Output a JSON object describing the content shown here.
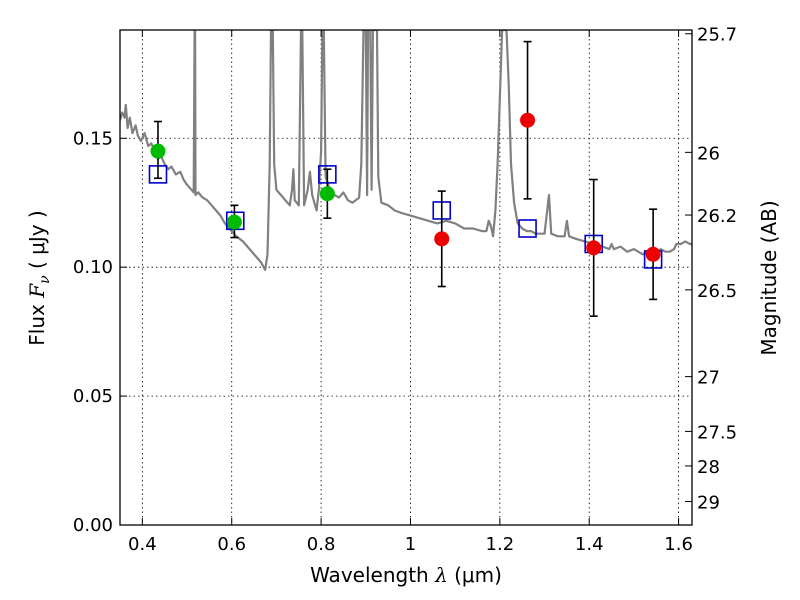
{
  "chart_data": {
    "type": "scatter",
    "title": "",
    "xlabel": "Wavelength  λ (μm)",
    "xlabel_parts": {
      "pre": "Wavelength  ",
      "symbol": "λ",
      "post": " (μm)"
    },
    "ylabel": "Flux  Fν  ( μJy )",
    "ylabel_parts": {
      "pre": "Flux  ",
      "symbol": "F",
      "sub": "ν",
      "post": "  ( μJy )"
    },
    "y2label": "Magnitude (AB)",
    "xlim": [
      0.35,
      1.63
    ],
    "ylim": [
      0.0,
      0.192
    ],
    "grid": true,
    "grid_style": "dotted",
    "legend": "none",
    "x_ticks": [
      {
        "value": 0.4,
        "label": "0.4"
      },
      {
        "value": 0.6,
        "label": "0.6"
      },
      {
        "value": 0.8,
        "label": "0.8"
      },
      {
        "value": 1.0,
        "label": "1"
      },
      {
        "value": 1.2,
        "label": "1.2"
      },
      {
        "value": 1.4,
        "label": "1.4"
      },
      {
        "value": 1.6,
        "label": "1.6"
      }
    ],
    "y_ticks": [
      {
        "value": 0.0,
        "label": "0.00"
      },
      {
        "value": 0.05,
        "label": "0.05"
      },
      {
        "value": 0.1,
        "label": "0.10"
      },
      {
        "value": 0.15,
        "label": "0.15"
      }
    ],
    "mag_ticks": [
      {
        "value": 25.7,
        "label": "25.7"
      },
      {
        "value": 26,
        "label": "26"
      },
      {
        "value": 26.2,
        "label": "26.2"
      },
      {
        "value": 26.5,
        "label": "26.5"
      },
      {
        "value": 27,
        "label": "27"
      },
      {
        "value": 27.5,
        "label": "27.5"
      },
      {
        "value": 28,
        "label": "28"
      },
      {
        "value": 29,
        "label": "29"
      }
    ],
    "colors": {
      "model": "#808080",
      "green": "#00bb00",
      "red": "#ee0000",
      "model_flux_marker": "#0000cc",
      "errorbar": "#000000",
      "grid": "#000000"
    },
    "model_spectrum": [
      [
        0.35,
        0.157
      ],
      [
        0.355,
        0.16
      ],
      [
        0.36,
        0.158
      ],
      [
        0.363,
        0.163
      ],
      [
        0.367,
        0.154
      ],
      [
        0.372,
        0.158
      ],
      [
        0.378,
        0.152
      ],
      [
        0.385,
        0.155
      ],
      [
        0.39,
        0.151
      ],
      [
        0.397,
        0.149
      ],
      [
        0.405,
        0.152
      ],
      [
        0.413,
        0.147
      ],
      [
        0.42,
        0.148
      ],
      [
        0.428,
        0.145
      ],
      [
        0.435,
        0.142
      ],
      [
        0.442,
        0.143
      ],
      [
        0.45,
        0.14
      ],
      [
        0.458,
        0.138
      ],
      [
        0.465,
        0.139
      ],
      [
        0.475,
        0.136
      ],
      [
        0.485,
        0.137
      ],
      [
        0.492,
        0.134
      ],
      [
        0.5,
        0.132
      ],
      [
        0.51,
        0.13
      ],
      [
        0.515,
        0.129
      ],
      [
        0.517,
        0.192
      ],
      [
        0.518,
        0.192
      ],
      [
        0.519,
        0.128
      ],
      [
        0.525,
        0.129
      ],
      [
        0.535,
        0.127
      ],
      [
        0.545,
        0.126
      ],
      [
        0.555,
        0.124
      ],
      [
        0.565,
        0.122
      ],
      [
        0.575,
        0.12
      ],
      [
        0.585,
        0.117
      ],
      [
        0.595,
        0.115
      ],
      [
        0.61,
        0.112
      ],
      [
        0.625,
        0.11
      ],
      [
        0.64,
        0.107
      ],
      [
        0.655,
        0.104
      ],
      [
        0.665,
        0.102
      ],
      [
        0.675,
        0.099
      ],
      [
        0.68,
        0.105
      ],
      [
        0.685,
        0.14
      ],
      [
        0.688,
        0.192
      ],
      [
        0.692,
        0.192
      ],
      [
        0.695,
        0.14
      ],
      [
        0.7,
        0.13
      ],
      [
        0.71,
        0.128
      ],
      [
        0.72,
        0.126
      ],
      [
        0.73,
        0.124
      ],
      [
        0.735,
        0.13
      ],
      [
        0.738,
        0.138
      ],
      [
        0.741,
        0.126
      ],
      [
        0.75,
        0.124
      ],
      [
        0.755,
        0.192
      ],
      [
        0.758,
        0.192
      ],
      [
        0.762,
        0.124
      ],
      [
        0.77,
        0.13
      ],
      [
        0.775,
        0.137
      ],
      [
        0.78,
        0.128
      ],
      [
        0.79,
        0.122
      ],
      [
        0.795,
        0.13
      ],
      [
        0.8,
        0.145
      ],
      [
        0.803,
        0.192
      ],
      [
        0.806,
        0.192
      ],
      [
        0.81,
        0.135
      ],
      [
        0.82,
        0.13
      ],
      [
        0.83,
        0.128
      ],
      [
        0.84,
        0.127
      ],
      [
        0.85,
        0.129
      ],
      [
        0.86,
        0.126
      ],
      [
        0.87,
        0.125
      ],
      [
        0.885,
        0.127
      ],
      [
        0.89,
        0.14
      ],
      [
        0.895,
        0.192
      ],
      [
        0.9,
        0.192
      ],
      [
        0.903,
        0.128
      ],
      [
        0.905,
        0.192
      ],
      [
        0.91,
        0.192
      ],
      [
        0.913,
        0.13
      ],
      [
        0.916,
        0.192
      ],
      [
        0.925,
        0.192
      ],
      [
        0.928,
        0.135
      ],
      [
        0.935,
        0.125
      ],
      [
        0.95,
        0.124
      ],
      [
        0.965,
        0.122
      ],
      [
        0.98,
        0.121
      ],
      [
        1.0,
        0.12
      ],
      [
        1.02,
        0.119
      ],
      [
        1.04,
        0.118
      ],
      [
        1.06,
        0.117
      ],
      [
        1.08,
        0.118
      ],
      [
        1.1,
        0.117
      ],
      [
        1.12,
        0.115
      ],
      [
        1.14,
        0.115
      ],
      [
        1.16,
        0.114
      ],
      [
        1.17,
        0.114
      ],
      [
        1.175,
        0.118
      ],
      [
        1.18,
        0.116
      ],
      [
        1.185,
        0.112
      ],
      [
        1.19,
        0.122
      ],
      [
        1.195,
        0.14
      ],
      [
        1.2,
        0.165
      ],
      [
        1.205,
        0.192
      ],
      [
        1.215,
        0.192
      ],
      [
        1.22,
        0.17
      ],
      [
        1.225,
        0.14
      ],
      [
        1.232,
        0.125
      ],
      [
        1.24,
        0.117
      ],
      [
        1.25,
        0.115
      ],
      [
        1.26,
        0.114
      ],
      [
        1.27,
        0.114
      ],
      [
        1.28,
        0.113
      ],
      [
        1.3,
        0.113
      ],
      [
        1.31,
        0.128
      ],
      [
        1.315,
        0.113
      ],
      [
        1.33,
        0.112
      ],
      [
        1.345,
        0.112
      ],
      [
        1.35,
        0.118
      ],
      [
        1.355,
        0.112
      ],
      [
        1.37,
        0.111
      ],
      [
        1.39,
        0.11
      ],
      [
        1.41,
        0.109
      ],
      [
        1.43,
        0.108
      ],
      [
        1.445,
        0.107
      ],
      [
        1.45,
        0.109
      ],
      [
        1.455,
        0.107
      ],
      [
        1.47,
        0.108
      ],
      [
        1.485,
        0.106
      ],
      [
        1.5,
        0.107
      ],
      [
        1.52,
        0.105
      ],
      [
        1.535,
        0.106
      ],
      [
        1.55,
        0.105
      ],
      [
        1.56,
        0.107
      ],
      [
        1.57,
        0.106
      ],
      [
        1.58,
        0.106
      ],
      [
        1.59,
        0.107
      ],
      [
        1.595,
        0.109
      ],
      [
        1.605,
        0.109
      ],
      [
        1.615,
        0.11
      ],
      [
        1.625,
        0.109
      ],
      [
        1.63,
        0.109
      ]
    ],
    "model_fluxes": [
      {
        "x": 0.435,
        "y": 0.136
      },
      {
        "x": 0.608,
        "y": 0.118
      },
      {
        "x": 0.814,
        "y": 0.136
      },
      {
        "x": 1.07,
        "y": 0.122
      },
      {
        "x": 1.262,
        "y": 0.115
      },
      {
        "x": 1.41,
        "y": 0.109
      },
      {
        "x": 1.543,
        "y": 0.103
      }
    ],
    "observed_fluxes": [
      {
        "x": 0.435,
        "y": 0.145,
        "err_low": 0.0105,
        "err_high": 0.0115,
        "color": "green"
      },
      {
        "x": 0.606,
        "y": 0.1175,
        "err_low": 0.006,
        "err_high": 0.0065,
        "color": "green"
      },
      {
        "x": 0.814,
        "y": 0.1285,
        "err_low": 0.0095,
        "err_high": 0.0095,
        "color": "green"
      },
      {
        "x": 1.07,
        "y": 0.111,
        "err_low": 0.0185,
        "err_high": 0.0185,
        "color": "red"
      },
      {
        "x": 1.262,
        "y": 0.157,
        "err_low": 0.0305,
        "err_high": 0.0305,
        "color": "red"
      },
      {
        "x": 1.41,
        "y": 0.1075,
        "err_low": 0.0265,
        "err_high": 0.0265,
        "color": "red"
      },
      {
        "x": 1.543,
        "y": 0.105,
        "err_low": 0.0175,
        "err_high": 0.0175,
        "color": "red"
      }
    ]
  }
}
